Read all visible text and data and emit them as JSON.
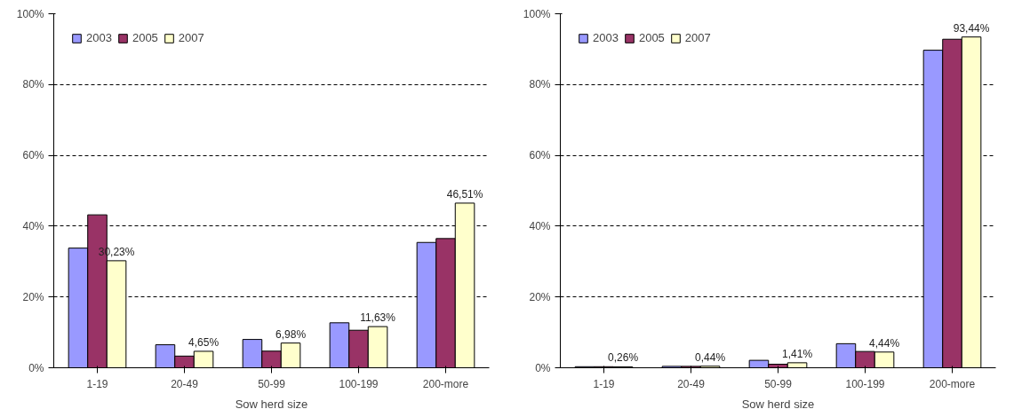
{
  "chart_data": [
    {
      "type": "bar",
      "xlabel": "Sow herd size",
      "categories": [
        "1-19",
        "20-49",
        "50-99",
        "100-199",
        "200-more"
      ],
      "ylim": [
        0,
        100
      ],
      "yticks": [
        {
          "value": 0,
          "label": "0%"
        },
        {
          "value": 20,
          "label": "20%"
        },
        {
          "value": 40,
          "label": "40%"
        },
        {
          "value": 60,
          "label": "60%"
        },
        {
          "value": 80,
          "label": "80%"
        },
        {
          "value": 100,
          "label": "100%"
        }
      ],
      "grid": "y",
      "legend": "top left",
      "series": [
        {
          "name": "2003",
          "color": "#9999ff",
          "values": [
            33.8,
            6.5,
            8.0,
            12.7,
            35.4
          ]
        },
        {
          "name": "2005",
          "color": "#993366",
          "values": [
            43.2,
            3.3,
            4.7,
            10.6,
            36.5
          ]
        },
        {
          "name": "2007",
          "color": "#ffffcc",
          "values": [
            30.23,
            4.65,
            6.98,
            11.63,
            46.51
          ],
          "value_labels": [
            "30,23%",
            "4,65%",
            "6,98%",
            "11,63%",
            "46,51%"
          ]
        }
      ]
    },
    {
      "type": "bar",
      "xlabel": "Sow herd size",
      "categories": [
        "1-19",
        "20-49",
        "50-99",
        "100-199",
        "200-more"
      ],
      "ylim": [
        0,
        100
      ],
      "yticks": [
        {
          "value": 0,
          "label": "0%"
        },
        {
          "value": 20,
          "label": "20%"
        },
        {
          "value": 40,
          "label": "40%"
        },
        {
          "value": 60,
          "label": "60%"
        },
        {
          "value": 80,
          "label": "80%"
        },
        {
          "value": 100,
          "label": "100%"
        }
      ],
      "grid": "y",
      "legend": "top left",
      "series": [
        {
          "name": "2003",
          "color": "#9999ff",
          "values": [
            0.3,
            0.4,
            2.1,
            6.8,
            89.7
          ]
        },
        {
          "name": "2005",
          "color": "#993366",
          "values": [
            0.3,
            0.4,
            1.0,
            4.6,
            92.8
          ]
        },
        {
          "name": "2007",
          "color": "#ffffcc",
          "values": [
            0.26,
            0.44,
            1.41,
            4.44,
            93.44
          ],
          "value_labels": [
            "0,26%",
            "0,44%",
            "1,41%",
            "4,44%",
            "93,44%"
          ]
        }
      ]
    }
  ]
}
